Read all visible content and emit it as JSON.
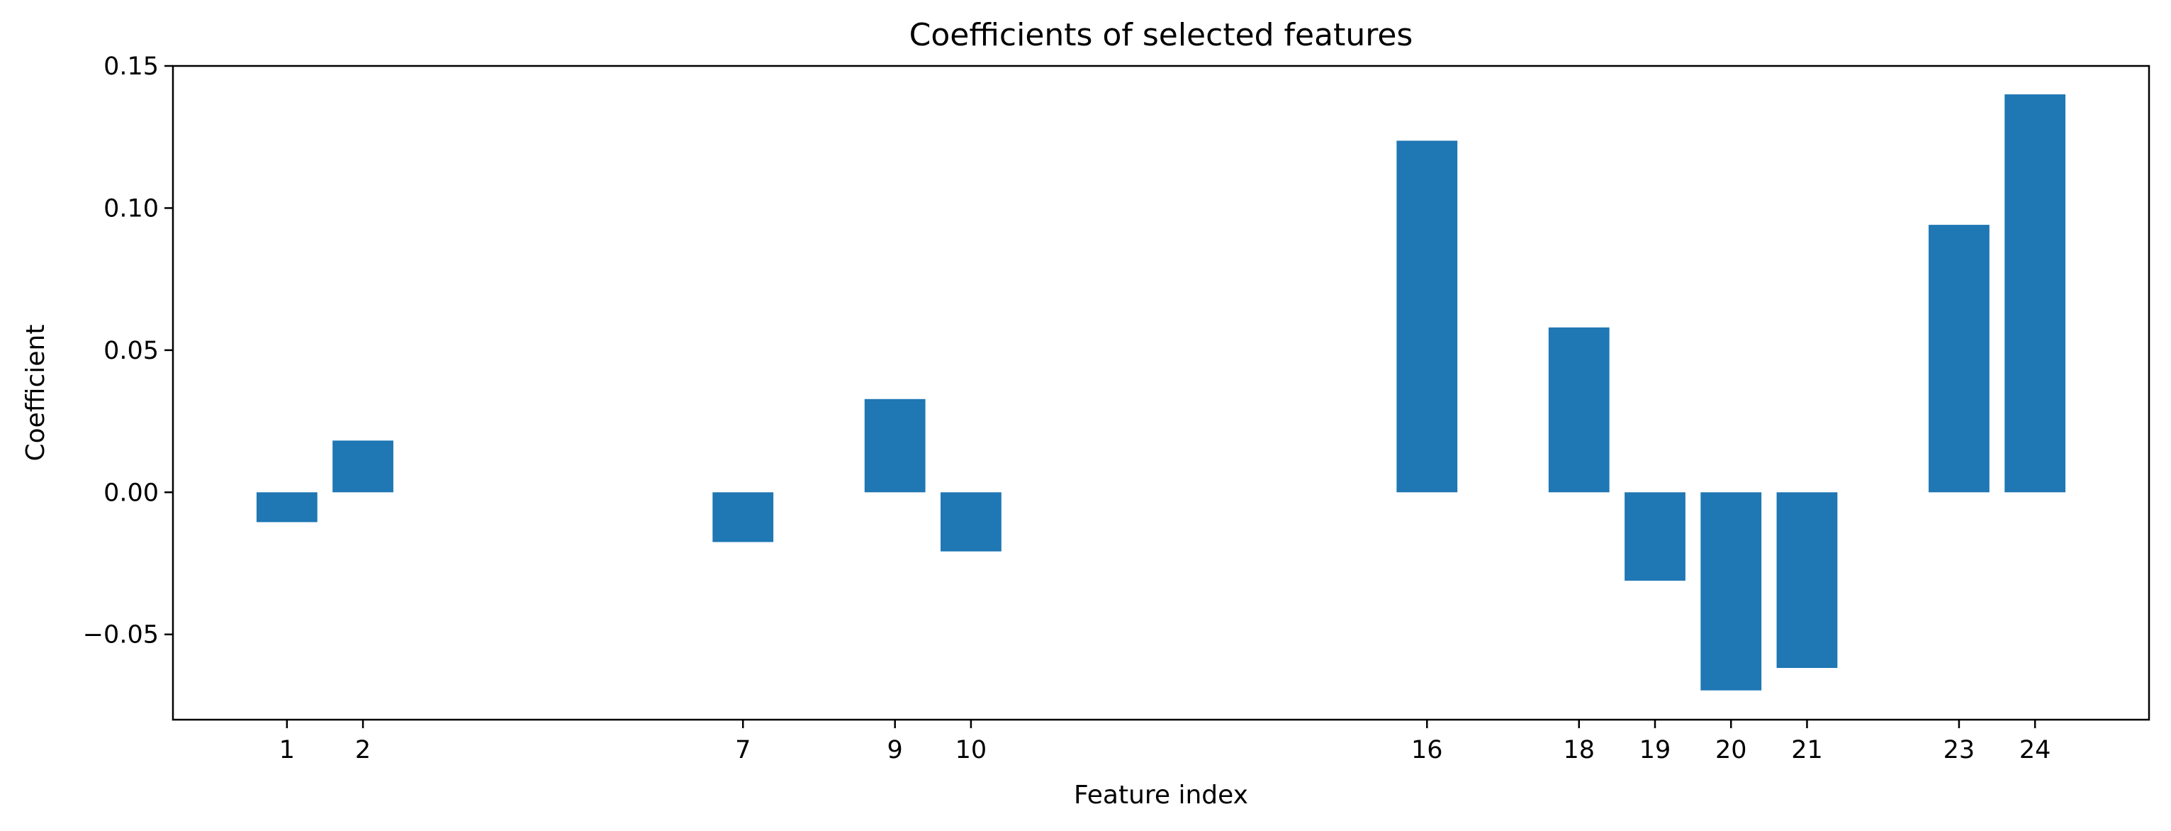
{
  "chart_data": {
    "type": "bar",
    "title": "Coefficients of selected features",
    "xlabel": "Feature index",
    "ylabel": "Coefficient",
    "categories": [
      "1",
      "2",
      "7",
      "9",
      "10",
      "16",
      "18",
      "19",
      "20",
      "21",
      "23",
      "24"
    ],
    "x": [
      1,
      2,
      7,
      9,
      10,
      16,
      18,
      19,
      20,
      21,
      23,
      24
    ],
    "values": [
      -0.0105,
      0.0182,
      -0.0175,
      0.0328,
      -0.0208,
      0.1237,
      0.058,
      -0.0311,
      -0.0697,
      -0.0618,
      0.0941,
      0.14
    ],
    "xlim": [
      -0.5,
      25.5
    ],
    "ylim": [
      -0.08,
      0.15
    ],
    "yticks": [
      -0.05,
      0.0,
      0.05,
      0.1,
      0.15
    ],
    "ytick_labels": [
      "−0.05",
      "0.00",
      "0.05",
      "0.10",
      "0.15"
    ],
    "bar_color": "#1f77b4",
    "grid": false,
    "legend": "none"
  }
}
